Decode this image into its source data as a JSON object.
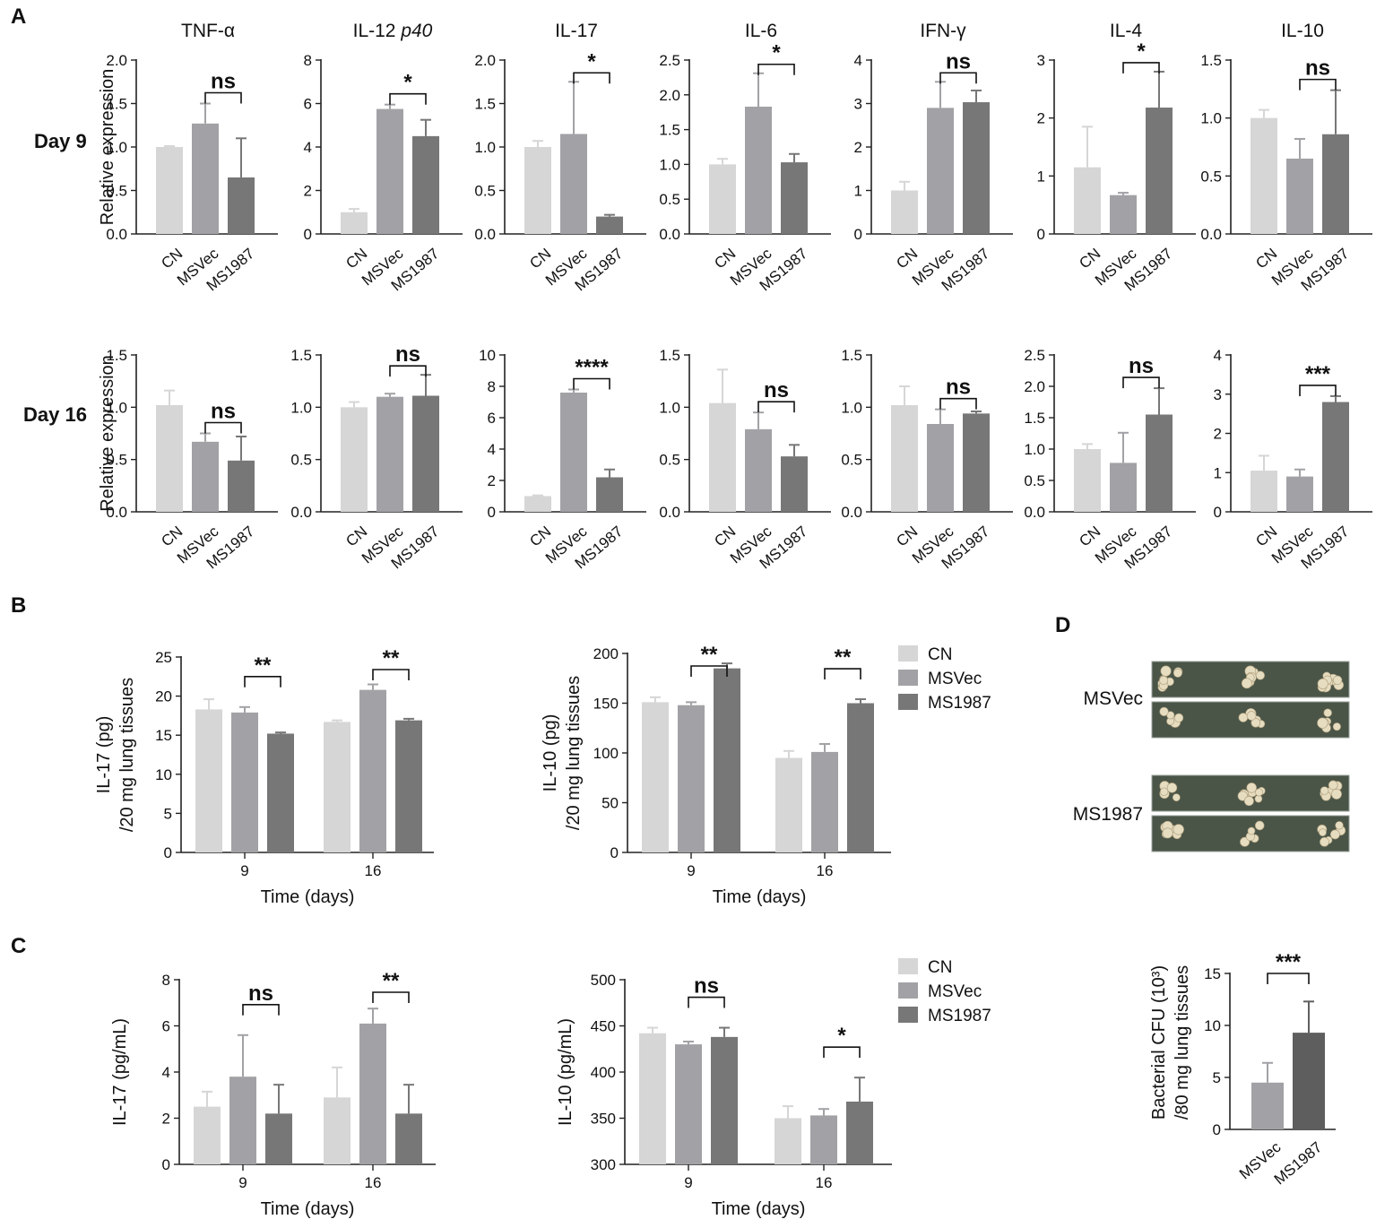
{
  "colors": {
    "CN": "#d6d6d6",
    "MSVec": "#a2a2a6",
    "MS1987": "#777778",
    "axis": "#222222"
  },
  "panels": {
    "A": "A",
    "B": "B",
    "C": "C",
    "D": "D"
  },
  "rows": {
    "day9": "Day 9",
    "day16": "Day 16"
  },
  "legend": [
    "CN",
    "MSVec",
    "MS1987"
  ],
  "plate_labels": [
    "MSVec",
    "MS1987"
  ],
  "chart_data": [
    {
      "id": "A-d9-tnf",
      "type": "bar",
      "title": "TNF-α",
      "row": "Day 9",
      "ylabel": "Relative expression",
      "categories": [
        "CN",
        "MSVec",
        "MS1987"
      ],
      "values": [
        1.0,
        1.27,
        0.65
      ],
      "errors": [
        0.01,
        0.23,
        0.45
      ],
      "ylim": [
        0,
        2.0
      ],
      "yticks": [
        "0.0",
        "0.5",
        "1.0",
        "1.5",
        "2.0"
      ],
      "sig": {
        "label": "ns",
        "between": [
          1,
          2
        ]
      }
    },
    {
      "id": "A-d9-il12",
      "type": "bar",
      "title": "IL-12 p40",
      "title_main": "IL-12 ",
      "title_ital": "p40",
      "row": "Day 9",
      "ylabel": "",
      "categories": [
        "CN",
        "MSVec",
        "MS1987"
      ],
      "values": [
        1.0,
        5.75,
        4.5
      ],
      "errors": [
        0.15,
        0.2,
        0.75
      ],
      "ylim": [
        0,
        8
      ],
      "yticks": [
        "0",
        "2",
        "4",
        "6",
        "8"
      ],
      "sig": {
        "label": "*",
        "between": [
          1,
          2
        ]
      }
    },
    {
      "id": "A-d9-il17",
      "type": "bar",
      "title": "IL-17",
      "row": "Day 9",
      "ylabel": "",
      "categories": [
        "CN",
        "MSVec",
        "MS1987"
      ],
      "values": [
        1.0,
        1.15,
        0.2
      ],
      "errors": [
        0.07,
        0.6,
        0.02
      ],
      "ylim": [
        0,
        2.0
      ],
      "yticks": [
        "0.0",
        "0.5",
        "1.0",
        "1.5",
        "2.0"
      ],
      "sig": {
        "label": "*",
        "between": [
          1,
          2
        ]
      }
    },
    {
      "id": "A-d9-il6",
      "type": "bar",
      "title": "IL-6",
      "row": "Day 9",
      "ylabel": "",
      "categories": [
        "CN",
        "MSVec",
        "MS1987"
      ],
      "values": [
        1.0,
        1.83,
        1.03
      ],
      "errors": [
        0.08,
        0.48,
        0.12
      ],
      "ylim": [
        0,
        2.5
      ],
      "yticks": [
        "0.0",
        "0.5",
        "1.0",
        "1.5",
        "2.0",
        "2.5"
      ],
      "sig": {
        "label": "*",
        "between": [
          1,
          2
        ]
      }
    },
    {
      "id": "A-d9-ifn",
      "type": "bar",
      "title": "IFN-γ",
      "row": "Day 9",
      "ylabel": "",
      "categories": [
        "CN",
        "MSVec",
        "MS1987"
      ],
      "values": [
        1.0,
        2.9,
        3.03
      ],
      "errors": [
        0.2,
        0.6,
        0.27
      ],
      "ylim": [
        0,
        4
      ],
      "yticks": [
        "0",
        "1",
        "2",
        "3",
        "4"
      ],
      "sig": {
        "label": "ns",
        "between": [
          1,
          2
        ]
      }
    },
    {
      "id": "A-d9-il4",
      "type": "bar",
      "title": "IL-4",
      "row": "Day 9",
      "ylabel": "",
      "categories": [
        "CN",
        "MSVec",
        "MS1987"
      ],
      "values": [
        1.15,
        0.67,
        2.18
      ],
      "errors": [
        0.7,
        0.04,
        0.62
      ],
      "ylim": [
        0,
        3
      ],
      "yticks": [
        "0",
        "1",
        "2",
        "3"
      ],
      "sig": {
        "label": "*",
        "between": [
          1,
          2
        ]
      }
    },
    {
      "id": "A-d9-il10",
      "type": "bar",
      "title": "IL-10",
      "row": "Day 9",
      "ylabel": "",
      "categories": [
        "CN",
        "MSVec",
        "MS1987"
      ],
      "values": [
        1.0,
        0.65,
        0.86
      ],
      "errors": [
        0.07,
        0.17,
        0.38
      ],
      "ylim": [
        0,
        1.5
      ],
      "yticks": [
        "0.0",
        "0.5",
        "1.0",
        "1.5"
      ],
      "sig": {
        "label": "ns",
        "between": [
          1,
          2
        ]
      }
    },
    {
      "id": "A-d16-tnf",
      "type": "bar",
      "title": "",
      "row": "Day 16",
      "ylabel": "Relative expression",
      "categories": [
        "CN",
        "MSVec",
        "MS1987"
      ],
      "values": [
        1.02,
        0.67,
        0.49
      ],
      "errors": [
        0.14,
        0.08,
        0.23
      ],
      "ylim": [
        0,
        1.5
      ],
      "yticks": [
        "0.0",
        "0.5",
        "1.0",
        "1.5"
      ],
      "sig": {
        "label": "ns",
        "between": [
          1,
          2
        ]
      }
    },
    {
      "id": "A-d16-il12",
      "type": "bar",
      "title": "",
      "row": "Day 16",
      "ylabel": "",
      "categories": [
        "CN",
        "MSVec",
        "MS1987"
      ],
      "values": [
        1.0,
        1.1,
        1.11
      ],
      "errors": [
        0.05,
        0.03,
        0.2
      ],
      "ylim": [
        0,
        1.5
      ],
      "yticks": [
        "0.0",
        "0.5",
        "1.0",
        "1.5"
      ],
      "sig": {
        "label": "ns",
        "between": [
          1,
          2
        ]
      }
    },
    {
      "id": "A-d16-il17",
      "type": "bar",
      "title": "",
      "row": "Day 16",
      "ylabel": "",
      "categories": [
        "CN",
        "MSVec",
        "MS1987"
      ],
      "values": [
        1.0,
        7.6,
        2.2
      ],
      "errors": [
        0.05,
        0.2,
        0.5
      ],
      "ylim": [
        0,
        10
      ],
      "yticks": [
        "0",
        "2",
        "4",
        "6",
        "8",
        "10"
      ],
      "sig": {
        "label": "****",
        "between": [
          1,
          2
        ]
      }
    },
    {
      "id": "A-d16-il6",
      "type": "bar",
      "title": "",
      "row": "Day 16",
      "ylabel": "",
      "categories": [
        "CN",
        "MSVec",
        "MS1987"
      ],
      "values": [
        1.04,
        0.79,
        0.53
      ],
      "errors": [
        0.32,
        0.16,
        0.11
      ],
      "ylim": [
        0,
        1.5
      ],
      "yticks": [
        "0.0",
        "0.5",
        "1.0",
        "1.5"
      ],
      "sig": {
        "label": "ns",
        "between": [
          1,
          2
        ]
      }
    },
    {
      "id": "A-d16-ifn",
      "type": "bar",
      "title": "",
      "row": "Day 16",
      "ylabel": "",
      "categories": [
        "CN",
        "MSVec",
        "MS1987"
      ],
      "values": [
        1.02,
        0.84,
        0.94
      ],
      "errors": [
        0.18,
        0.14,
        0.02
      ],
      "ylim": [
        0,
        1.5
      ],
      "yticks": [
        "0.0",
        "0.5",
        "1.0",
        "1.5"
      ],
      "sig": {
        "label": "ns",
        "between": [
          1,
          2
        ]
      }
    },
    {
      "id": "A-d16-il4",
      "type": "bar",
      "title": "",
      "row": "Day 16",
      "ylabel": "",
      "categories": [
        "CN",
        "MSVec",
        "MS1987"
      ],
      "values": [
        1.0,
        0.78,
        1.55
      ],
      "errors": [
        0.08,
        0.48,
        0.42
      ],
      "ylim": [
        0,
        2.5
      ],
      "yticks": [
        "0.0",
        "0.5",
        "1.0",
        "1.5",
        "2.0",
        "2.5"
      ],
      "sig": {
        "label": "ns",
        "between": [
          1,
          2
        ]
      }
    },
    {
      "id": "A-d16-il10",
      "type": "bar",
      "title": "",
      "row": "Day 16",
      "ylabel": "",
      "categories": [
        "CN",
        "MSVec",
        "MS1987"
      ],
      "values": [
        1.05,
        0.9,
        2.8
      ],
      "errors": [
        0.38,
        0.18,
        0.15
      ],
      "ylim": [
        0,
        4
      ],
      "yticks": [
        "0",
        "1",
        "2",
        "3",
        "4"
      ],
      "sig": {
        "label": "***",
        "between": [
          1,
          2
        ]
      }
    },
    {
      "id": "B-il17",
      "type": "bar",
      "title": "",
      "ylabel": "IL-17 (pg)\n/20 mg lung tissues",
      "ylabel_lines": [
        "IL-17 (pg)",
        "/20 mg lung tissues"
      ],
      "xlabel": "Time (days)",
      "categories": [
        "9",
        "16"
      ],
      "series": [
        {
          "name": "CN",
          "values": [
            18.3,
            16.7
          ],
          "errors": [
            1.3,
            0.2
          ]
        },
        {
          "name": "MSVec",
          "values": [
            17.9,
            20.8
          ],
          "errors": [
            0.7,
            0.7
          ]
        },
        {
          "name": "MS1987",
          "values": [
            15.2,
            16.9
          ],
          "errors": [
            0.15,
            0.2
          ]
        }
      ],
      "ylim": [
        0,
        25
      ],
      "yticks": [
        "0",
        "5",
        "10",
        "15",
        "20",
        "25"
      ],
      "sig": [
        {
          "label": "**",
          "group": 0
        },
        {
          "label": "**",
          "group": 1
        }
      ]
    },
    {
      "id": "B-il10",
      "type": "bar",
      "title": "",
      "ylabel": "IL-10 (pg)\n/20 mg lung tissues",
      "ylabel_lines": [
        "IL-10 (pg)",
        "/20 mg lung tissues"
      ],
      "xlabel": "Time (days)",
      "categories": [
        "9",
        "16"
      ],
      "series": [
        {
          "name": "CN",
          "values": [
            151,
            95
          ],
          "errors": [
            5,
            7
          ]
        },
        {
          "name": "MSVec",
          "values": [
            148,
            101
          ],
          "errors": [
            3,
            8
          ]
        },
        {
          "name": "MS1987",
          "values": [
            185,
            150
          ],
          "errors": [
            5,
            4
          ]
        }
      ],
      "ylim": [
        0,
        200
      ],
      "yticks": [
        "0",
        "50",
        "100",
        "150",
        "200"
      ],
      "sig": [
        {
          "label": "**",
          "group": 0
        },
        {
          "label": "**",
          "group": 1
        }
      ]
    },
    {
      "id": "C-il17",
      "type": "bar",
      "title": "",
      "ylabel": "IL-17 (pg/mL)",
      "ylabel_lines": [
        "IL-17 (pg/mL)"
      ],
      "xlabel": "Time (days)",
      "categories": [
        "9",
        "16"
      ],
      "series": [
        {
          "name": "CN",
          "values": [
            2.5,
            2.9
          ],
          "errors": [
            0.65,
            1.3
          ]
        },
        {
          "name": "MSVec",
          "values": [
            3.8,
            6.1
          ],
          "errors": [
            1.8,
            0.65
          ]
        },
        {
          "name": "MS1987",
          "values": [
            2.2,
            2.2
          ],
          "errors": [
            1.25,
            1.25
          ]
        }
      ],
      "ylim": [
        0,
        8
      ],
      "yticks": [
        "0",
        "2",
        "4",
        "6",
        "8"
      ],
      "sig": [
        {
          "label": "ns",
          "group": 0
        },
        {
          "label": "**",
          "group": 1
        }
      ]
    },
    {
      "id": "C-il10",
      "type": "bar",
      "title": "",
      "ylabel": "IL-10 (pg/mL)",
      "ylabel_lines": [
        "IL-10 (pg/mL)"
      ],
      "xlabel": "Time (days)",
      "categories": [
        "9",
        "16"
      ],
      "series": [
        {
          "name": "CN",
          "values": [
            442,
            350
          ],
          "errors": [
            6,
            13
          ]
        },
        {
          "name": "MSVec",
          "values": [
            430,
            353
          ],
          "errors": [
            3,
            7
          ]
        },
        {
          "name": "MS1987",
          "values": [
            438,
            368
          ],
          "errors": [
            10,
            26
          ]
        }
      ],
      "ylim": [
        300,
        500
      ],
      "yticks": [
        "300",
        "350",
        "400",
        "450",
        "500"
      ],
      "sig": [
        {
          "label": "ns",
          "group": 0
        },
        {
          "label": "*",
          "group": 1
        }
      ]
    },
    {
      "id": "D-cfu",
      "type": "bar",
      "title": "",
      "ylabel": "Bacterial CFU (10³)\n/80 mg lung tissues",
      "ylabel_lines": [
        "Bacterial CFU (10³)",
        "/80 mg lung tissues"
      ],
      "categories": [
        "MSVec",
        "MS1987"
      ],
      "values": [
        4.5,
        9.3
      ],
      "errors": [
        1.9,
        3.0
      ],
      "ylim": [
        0,
        15
      ],
      "yticks": [
        "0",
        "5",
        "10",
        "15"
      ],
      "sig": {
        "label": "***",
        "between": [
          0,
          1
        ]
      }
    }
  ]
}
